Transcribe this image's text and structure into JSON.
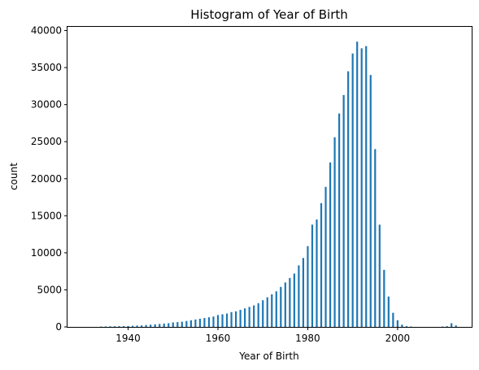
{
  "chart_data": {
    "type": "bar",
    "title": "Histogram of Year of Birth",
    "xlabel": "Year of Birth",
    "ylabel": "count",
    "xlim": [
      1926.5,
      2016.5
    ],
    "ylim": [
      0,
      40500
    ],
    "x_ticks": [
      1940,
      1960,
      1980,
      2000
    ],
    "x_tick_labels": [
      "1940",
      "1960",
      "1980",
      "2000"
    ],
    "y_ticks": [
      0,
      5000,
      10000,
      15000,
      20000,
      25000,
      30000,
      35000,
      40000
    ],
    "y_tick_labels": [
      "0",
      "5000",
      "10000",
      "15000",
      "20000",
      "25000",
      "30000",
      "35000",
      "40000"
    ],
    "bar_color": "#1f77b4",
    "grid": false,
    "x": [
      1934,
      1935,
      1936,
      1937,
      1938,
      1939,
      1940,
      1941,
      1942,
      1943,
      1944,
      1945,
      1946,
      1947,
      1948,
      1949,
      1950,
      1951,
      1952,
      1953,
      1954,
      1955,
      1956,
      1957,
      1958,
      1959,
      1960,
      1961,
      1962,
      1963,
      1964,
      1965,
      1966,
      1967,
      1968,
      1969,
      1970,
      1971,
      1972,
      1973,
      1974,
      1975,
      1976,
      1977,
      1978,
      1979,
      1980,
      1981,
      1982,
      1983,
      1984,
      1985,
      1986,
      1987,
      1988,
      1989,
      1990,
      1991,
      1992,
      1993,
      1994,
      1995,
      1996,
      1997,
      1998,
      1999,
      2000,
      2001,
      2002,
      2003,
      2010,
      2011,
      2012,
      2013
    ],
    "values": [
      50,
      60,
      80,
      90,
      100,
      110,
      120,
      150,
      180,
      200,
      250,
      300,
      350,
      400,
      450,
      500,
      600,
      650,
      700,
      800,
      900,
      1000,
      1100,
      1200,
      1300,
      1400,
      1600,
      1700,
      1800,
      2000,
      2100,
      2300,
      2500,
      2700,
      2900,
      3200,
      3600,
      4000,
      4400,
      4800,
      5400,
      6000,
      6600,
      7200,
      8300,
      9300,
      10900,
      13800,
      14500,
      16700,
      18900,
      22200,
      25600,
      28800,
      31300,
      34500,
      36900,
      38500,
      37600,
      37900,
      34000,
      24000,
      13800,
      7700,
      4100,
      1900,
      900,
      300,
      100,
      50,
      50,
      100,
      500,
      200
    ],
    "bar_width": 0.4
  }
}
